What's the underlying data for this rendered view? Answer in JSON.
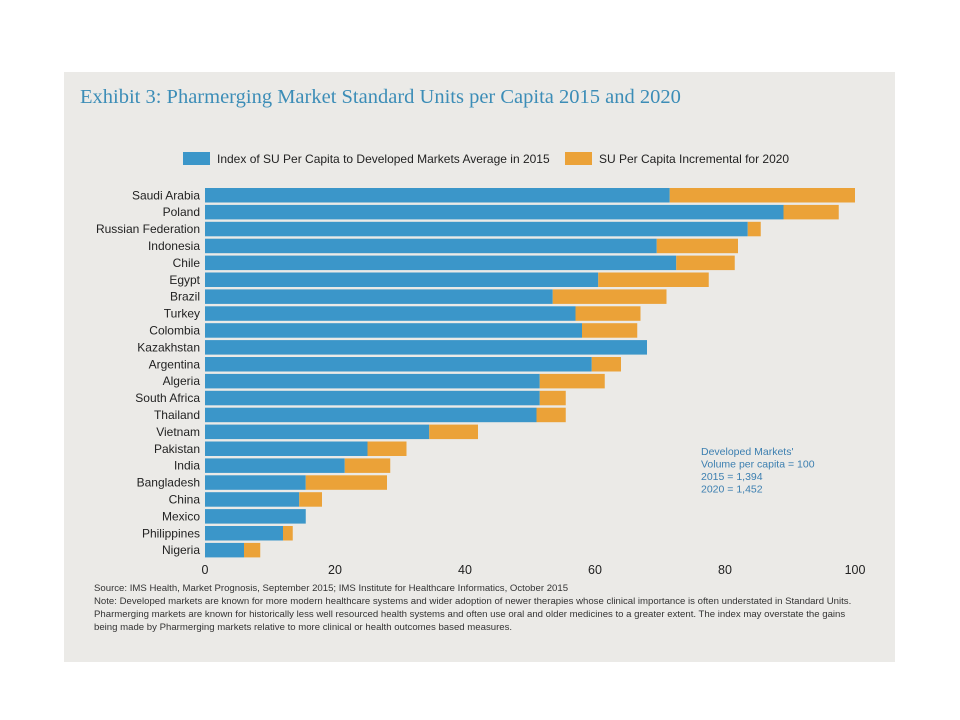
{
  "title": "Exhibit 3: Pharmerging Market Standard Units per Capita 2015 and 2020",
  "colors": {
    "series2015": "#3b96c9",
    "incremental2020": "#eba238",
    "background": "#ebeae7",
    "title": "#3c8db7"
  },
  "chart_data": {
    "type": "bar",
    "orientation": "horizontal",
    "stacked": true,
    "title": "Exhibit 3: Pharmerging Market Standard Units per Capita 2015 and 2020",
    "xlim": [
      0,
      100
    ],
    "xticks": [
      "0",
      "20",
      "40",
      "60",
      "80",
      "100"
    ],
    "grid": false,
    "legend_position": "top",
    "categories": [
      "Saudi Arabia",
      "Poland",
      "Russian Federation",
      "Indonesia",
      "Chile",
      "Egypt",
      "Brazil",
      "Turkey",
      "Colombia",
      "Kazakhstan",
      "Argentina",
      "Algeria",
      "South Africa",
      "Thailand",
      "Vietnam",
      "Pakistan",
      "India",
      "Bangladesh",
      "China",
      "Mexico",
      "Philippines",
      "Nigeria"
    ],
    "series": [
      {
        "name": "Index of SU Per Capita to Developed Markets Average in 2015",
        "values": [
          71.5,
          89,
          83.5,
          69.5,
          72.5,
          60.5,
          53.5,
          57,
          58,
          68,
          59.5,
          51.5,
          51.5,
          51,
          34.5,
          25,
          21.5,
          15.5,
          14.5,
          15.5,
          12,
          6
        ]
      },
      {
        "name": "SU Per Capita Incremental for 2020",
        "values": [
          28.5,
          8.5,
          2,
          12.5,
          9,
          17,
          17.5,
          10,
          8.5,
          0,
          4.5,
          10,
          4,
          4.5,
          7.5,
          6,
          7,
          12.5,
          3.5,
          0,
          1.5,
          2.5
        ]
      }
    ]
  },
  "annotation": [
    "Developed Markets'",
    "Volume per capita = 100",
    "2015 = 1,394",
    "2020 = 1,452"
  ],
  "footer": {
    "source": "Source: IMS Health, Market Prognosis,  September 2015; IMS Institute for Healthcare Informatics, October 2015",
    "note1": "Note: Developed markets are known for more modern healthcare systems and wider adoption of newer therapies whose clinical importance is often understated in Standard Units.",
    "note2": "Pharmerging markets are known for historically less well resourced health systems and often use oral and older medicines to a greater extent. The index may overstate the gains",
    "note3": "being made by Pharmerging markets relative to more clinical or health outcomes based measures."
  }
}
